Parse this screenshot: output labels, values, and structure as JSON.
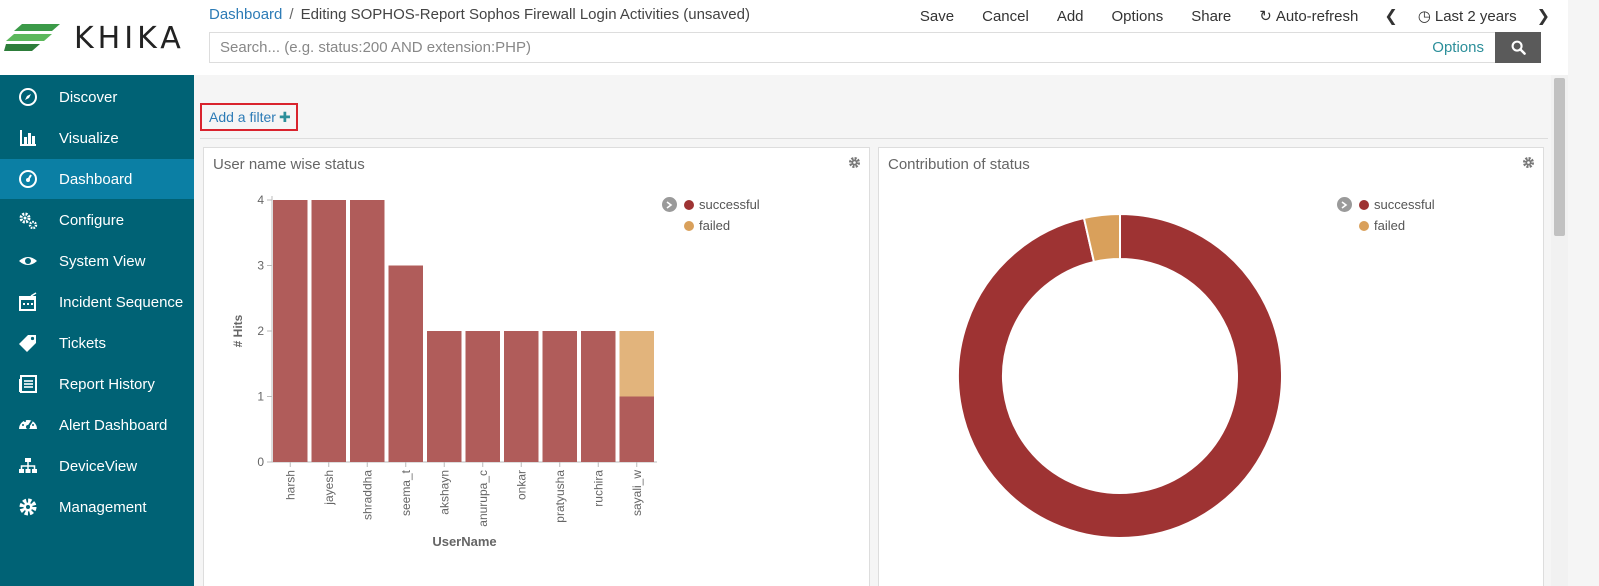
{
  "app": {
    "logo_text": "KHIKA"
  },
  "breadcrumb": {
    "root": "Dashboard",
    "separator": "/",
    "current": "Editing SOPHOS-Report Sophos Firewall Login Activities (unsaved)"
  },
  "toolbar": {
    "save": "Save",
    "cancel": "Cancel",
    "add": "Add",
    "options": "Options",
    "share": "Share",
    "auto_refresh": "Auto-refresh",
    "time_range": "Last 2 years"
  },
  "search": {
    "placeholder": "Search... (e.g. status:200 AND extension:PHP)",
    "options_label": "Options"
  },
  "sidebar": {
    "items": [
      {
        "label": "Discover",
        "icon": "compass-icon"
      },
      {
        "label": "Visualize",
        "icon": "bar-chart-icon"
      },
      {
        "label": "Dashboard",
        "icon": "dashboard-icon",
        "active": true
      },
      {
        "label": "Configure",
        "icon": "gears-icon"
      },
      {
        "label": "System View",
        "icon": "eye-icon"
      },
      {
        "label": "Incident Sequence",
        "icon": "calendar-icon"
      },
      {
        "label": "Tickets",
        "icon": "tag-icon"
      },
      {
        "label": "Report History",
        "icon": "report-icon"
      },
      {
        "label": "Alert Dashboard",
        "icon": "gauge-icon"
      },
      {
        "label": "DeviceView",
        "icon": "sitemap-icon"
      },
      {
        "label": "Management",
        "icon": "gear-icon"
      }
    ]
  },
  "filter": {
    "add_label": "Add a filter"
  },
  "colors": {
    "sidebar": "#006275",
    "sidebar_active": "#0b7fa4",
    "successful_bar": "#b05c5a",
    "failed_bar": "#e2b47c",
    "successful_pie": "#9e3333",
    "failed_pie": "#d9a05b"
  },
  "panels": {
    "left": {
      "title": "User name wise status",
      "legend": [
        "successful",
        "failed"
      ]
    },
    "right": {
      "title": "Contribution of status",
      "legend": [
        "successful",
        "failed"
      ]
    }
  },
  "chart_data": [
    {
      "type": "bar",
      "stacked": true,
      "title": "User name wise status",
      "xlabel": "UserName",
      "ylabel": "# Hits",
      "ylim": [
        0,
        4
      ],
      "yticks": [
        "0",
        "1",
        "2",
        "3",
        "4"
      ],
      "categories": [
        "harsh",
        "jayesh",
        "shraddha",
        "seema_t",
        "akshayn",
        "anurupa_c",
        "onkar",
        "pratyusha",
        "ruchira",
        "sayali_w"
      ],
      "series": [
        {
          "name": "successful",
          "values": [
            4,
            4,
            4,
            3,
            2,
            2,
            2,
            2,
            2,
            1
          ]
        },
        {
          "name": "failed",
          "values": [
            0,
            0,
            0,
            0,
            0,
            0,
            0,
            0,
            0,
            1
          ]
        }
      ],
      "legend_position": "top-right"
    },
    {
      "type": "pie",
      "donut": true,
      "title": "Contribution of status",
      "labels": [
        "successful",
        "failed"
      ],
      "values": [
        27,
        1
      ],
      "legend_position": "top-right"
    }
  ]
}
